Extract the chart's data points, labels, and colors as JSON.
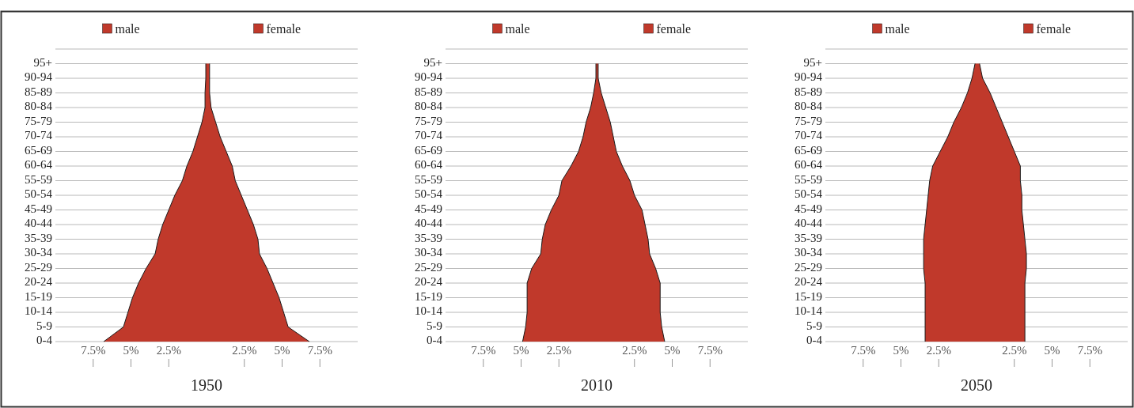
{
  "chart_data": [
    {
      "type": "area",
      "orientation": "horizontal",
      "title": "1950",
      "grid": "y",
      "legend": "top",
      "xlim": [
        -10,
        10
      ],
      "xticks": [
        {
          "value": -7.5,
          "label": "7.5%"
        },
        {
          "value": -5,
          "label": "5%"
        },
        {
          "value": -2.5,
          "label": "2.5%"
        },
        {
          "value": 2.5,
          "label": "2.5%"
        },
        {
          "value": 5,
          "label": "5%"
        },
        {
          "value": 7.5,
          "label": "7.5%"
        }
      ],
      "categories": [
        "95+",
        "90-94",
        "85-89",
        "80-84",
        "75-79",
        "70-74",
        "65-69",
        "60-64",
        "55-59",
        "50-54",
        "45-49",
        "40-44",
        "35-39",
        "30-34",
        "25-29",
        "20-24",
        "15-19",
        "10-14",
        "5-9",
        "0-4"
      ],
      "series": [
        {
          "name": "male",
          "color": "#c0392b",
          "values": [
            -0.05,
            -0.05,
            -0.1,
            -0.1,
            -0.3,
            -0.6,
            -0.9,
            -1.3,
            -1.6,
            -2.1,
            -2.5,
            -2.9,
            -3.2,
            -3.4,
            -4.0,
            -4.5,
            -4.9,
            -5.2,
            -5.5,
            -6.8
          ]
        },
        {
          "name": "female",
          "color": "#c0392b",
          "values": [
            0.2,
            0.2,
            0.2,
            0.3,
            0.6,
            0.9,
            1.3,
            1.7,
            1.9,
            2.3,
            2.7,
            3.1,
            3.4,
            3.5,
            4.0,
            4.4,
            4.8,
            5.1,
            5.4,
            6.8
          ]
        }
      ]
    },
    {
      "type": "area",
      "orientation": "horizontal",
      "title": "2010",
      "grid": "y",
      "legend": "top",
      "xlim": [
        -10,
        10
      ],
      "xticks": [
        {
          "value": -7.5,
          "label": "7.5%"
        },
        {
          "value": -5,
          "label": "5%"
        },
        {
          "value": -2.5,
          "label": "2.5%"
        },
        {
          "value": 2.5,
          "label": "2.5%"
        },
        {
          "value": 5,
          "label": "5%"
        },
        {
          "value": 7.5,
          "label": "7.5%"
        }
      ],
      "categories": [
        "95+",
        "90-94",
        "85-89",
        "80-84",
        "75-79",
        "70-74",
        "65-69",
        "60-64",
        "55-59",
        "50-54",
        "45-49",
        "40-44",
        "35-39",
        "30-34",
        "25-29",
        "20-24",
        "15-19",
        "10-14",
        "5-9",
        "0-4"
      ],
      "series": [
        {
          "name": "male",
          "color": "#c0392b",
          "values": [
            -0.05,
            -0.05,
            -0.2,
            -0.4,
            -0.7,
            -0.9,
            -1.2,
            -1.7,
            -2.3,
            -2.5,
            -3.0,
            -3.4,
            -3.6,
            -3.7,
            -4.3,
            -4.6,
            -4.6,
            -4.6,
            -4.7,
            -4.9
          ]
        },
        {
          "name": "female",
          "color": "#c0392b",
          "values": [
            0.1,
            0.1,
            0.3,
            0.6,
            0.9,
            1.1,
            1.3,
            1.7,
            2.2,
            2.5,
            3.0,
            3.2,
            3.4,
            3.5,
            3.9,
            4.2,
            4.2,
            4.2,
            4.3,
            4.5
          ]
        }
      ]
    },
    {
      "type": "area",
      "orientation": "horizontal",
      "title": "2050",
      "grid": "y",
      "legend": "top",
      "xlim": [
        -10,
        10
      ],
      "xticks": [
        {
          "value": -7.5,
          "label": "7.5%"
        },
        {
          "value": -5,
          "label": "5%"
        },
        {
          "value": -2.5,
          "label": "2.5%"
        },
        {
          "value": 2.5,
          "label": "2.5%"
        },
        {
          "value": 5,
          "label": "5%"
        },
        {
          "value": 7.5,
          "label": "7.5%"
        }
      ],
      "categories": [
        "95+",
        "90-94",
        "85-89",
        "80-84",
        "75-79",
        "70-74",
        "65-69",
        "60-64",
        "55-59",
        "50-54",
        "45-49",
        "40-44",
        "35-39",
        "30-34",
        "25-29",
        "20-24",
        "15-19",
        "10-14",
        "5-9",
        "0-4"
      ],
      "series": [
        {
          "name": "male",
          "color": "#c0392b",
          "values": [
            -0.1,
            -0.3,
            -0.6,
            -1.0,
            -1.5,
            -1.9,
            -2.4,
            -2.9,
            -3.1,
            -3.2,
            -3.3,
            -3.4,
            -3.5,
            -3.5,
            -3.5,
            -3.4,
            -3.4,
            -3.4,
            -3.4,
            -3.4
          ]
        },
        {
          "name": "female",
          "color": "#c0392b",
          "values": [
            0.2,
            0.4,
            0.9,
            1.3,
            1.7,
            2.1,
            2.5,
            2.9,
            2.9,
            3.0,
            3.0,
            3.1,
            3.2,
            3.3,
            3.3,
            3.2,
            3.2,
            3.2,
            3.2,
            3.2
          ]
        }
      ]
    }
  ]
}
